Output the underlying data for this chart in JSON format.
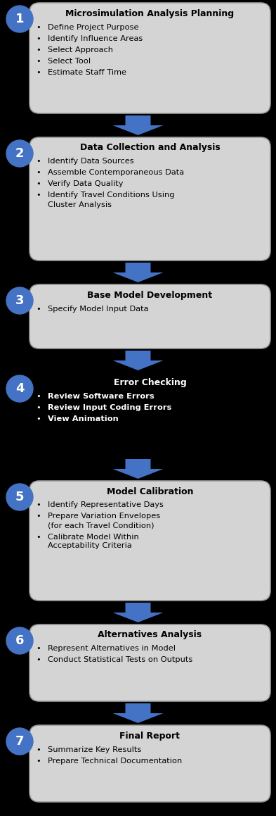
{
  "background_color": "#000000",
  "circle_color": "#4472C4",
  "arrow_color": "#4472C4",
  "box_color": "#D4D4D4",
  "box_border_color": "#999999",
  "fig_width": 3.93,
  "fig_height": 11.59,
  "dpi": 100,
  "steps": [
    {
      "number": "1",
      "title": "Microsimulation Analysis Planning",
      "bullets": [
        "Define Project Purpose",
        "Identify Influence Areas",
        "Select Approach",
        "Select Tool",
        "Estimate Staff Time"
      ],
      "title_bold": true,
      "bullets_bold": false,
      "dark_bg": false
    },
    {
      "number": "2",
      "title": "Data Collection and Analysis",
      "bullets": [
        "Identify Data Sources",
        "Assemble Contemporaneous Data",
        "Verify Data Quality",
        "Identify Travel Conditions Using\nCluster Analysis"
      ],
      "title_bold": true,
      "bullets_bold": false,
      "dark_bg": false
    },
    {
      "number": "3",
      "title": "Base Model Development",
      "bullets": [
        "Specify Model Input Data"
      ],
      "title_bold": true,
      "bullets_bold": false,
      "dark_bg": false
    },
    {
      "number": "4",
      "title": "Error Checking",
      "bullets": [
        "Review Software Errors",
        "Review Input Coding Errors",
        "View Animation"
      ],
      "title_bold": true,
      "bullets_bold": true,
      "dark_bg": true
    },
    {
      "number": "5",
      "title": "Model Calibration",
      "bullets": [
        "Identify Representative Days",
        "Prepare Variation Envelopes\n(for each Travel Condition)",
        "Calibrate Model Within\nAcceptability Criteria"
      ],
      "title_bold": true,
      "bullets_bold": false,
      "dark_bg": false
    },
    {
      "number": "6",
      "title": "Alternatives Analysis",
      "bullets": [
        "Represent Alternatives in Model",
        "Conduct Statistical Tests on Outputs"
      ],
      "title_bold": true,
      "bullets_bold": false,
      "dark_bg": false
    },
    {
      "number": "7",
      "title": "Final Report",
      "bullets": [
        "Summarize Key Results",
        "Prepare Technical Documentation"
      ],
      "title_bold": true,
      "bullets_bold": false,
      "dark_bg": false
    }
  ]
}
